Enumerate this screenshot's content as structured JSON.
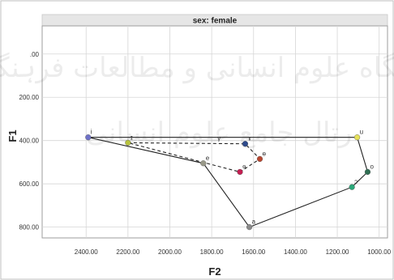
{
  "chart_data": {
    "type": "scatter",
    "title": "sex: female",
    "xlabel": "F2",
    "ylabel": "F1",
    "x_reversed": true,
    "y_reversed": true,
    "xlim": [
      2610,
      960
    ],
    "ylim": [
      -130,
      850
    ],
    "x_ticks": [
      "2400.00",
      "2200.00",
      "2000.00",
      "1800.00",
      "1600.00",
      "1400.00",
      "1200.00",
      "1000.00"
    ],
    "y_ticks": [
      ".00",
      "200.00",
      "400.00",
      "600.00",
      "800.00"
    ],
    "x_tick_values": [
      2400,
      2200,
      2000,
      1800,
      1600,
      1400,
      1200,
      1000
    ],
    "y_tick_values": [
      0,
      200,
      400,
      600,
      800
    ],
    "grid": true,
    "points": [
      {
        "label": "i",
        "f2": 2390,
        "f1": 385,
        "color": "#6f72c8"
      },
      {
        "label": "ɪ",
        "f2": 2200,
        "f1": 410,
        "color": "#b7c23c"
      },
      {
        "label": "e",
        "f2": 1840,
        "f1": 505,
        "color": "#9a9a8a"
      },
      {
        "label": "a",
        "f2": 1620,
        "f1": 800,
        "color": "#8a8a8a"
      },
      {
        "label": "ɘ",
        "f2": 1665,
        "f1": 545,
        "color": "#c41e52"
      },
      {
        "label": "ɤ",
        "f2": 1640,
        "f1": 415,
        "color": "#2e4a8c"
      },
      {
        "label": "ɵ",
        "f2": 1570,
        "f1": 485,
        "color": "#b8462f"
      },
      {
        "label": "ɔ",
        "f2": 1130,
        "f1": 615,
        "color": "#2aa879"
      },
      {
        "label": "o",
        "f2": 1055,
        "f1": 545,
        "color": "#2e6e52"
      },
      {
        "label": "u",
        "f2": 1105,
        "f1": 385,
        "color": "#e6e15a"
      }
    ],
    "solid_path": [
      "i",
      "e",
      "a",
      "ɔ",
      "o",
      "u",
      "i"
    ],
    "dashed_path": [
      "ɪ",
      "ɤ",
      "ɵ",
      "ɘ",
      "ɪ"
    ],
    "extra_labels": [
      {
        "text": "γ",
        "f2": 1765,
        "f1": 400
      }
    ]
  },
  "watermark": {
    "line1": "ژوہشگاه علوم انسانی و مطالعات فرہنگی",
    "line2": "رتال جامع علوم انسانی"
  }
}
